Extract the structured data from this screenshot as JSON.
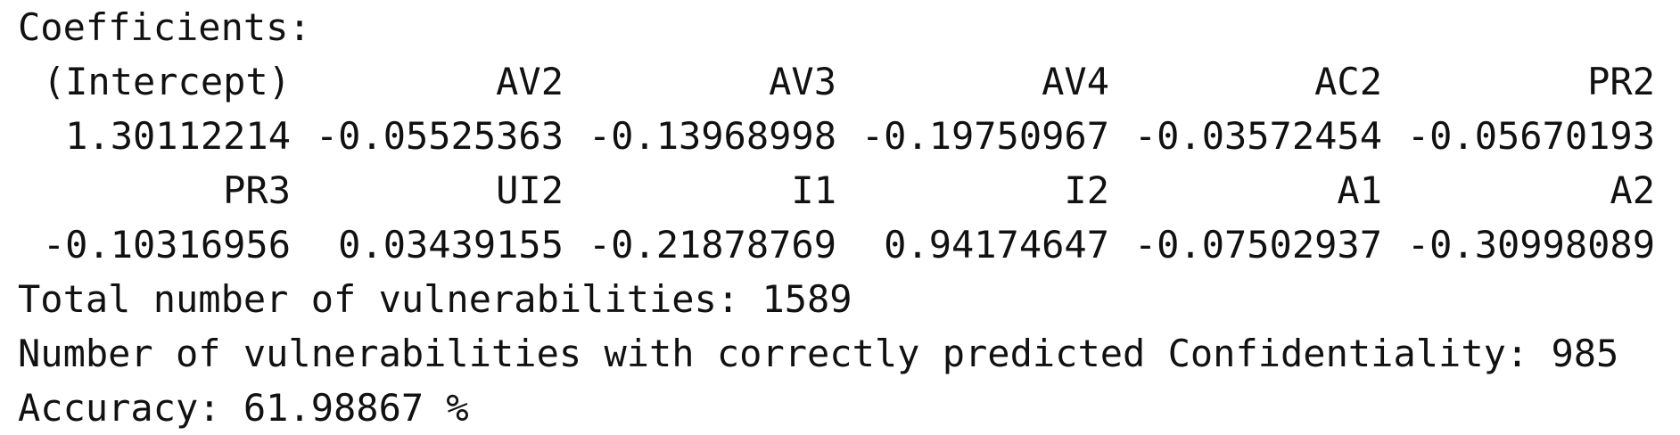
{
  "console": {
    "header": "Coefficients:",
    "coef_rows": [
      {
        "names": [
          "(Intercept)",
          "AV2",
          "AV3",
          "AV4",
          "AC2",
          "PR2"
        ],
        "values": [
          "1.30112214",
          "-0.05525363",
          "-0.13968998",
          "-0.19750967",
          "-0.03572454",
          "-0.05670193"
        ]
      },
      {
        "names": [
          "PR3",
          "UI2",
          "I1",
          "I2",
          "A1",
          "A2"
        ],
        "values": [
          "-0.10316956",
          "0.03439155",
          "-0.21878769",
          "0.94174647",
          "-0.07502937",
          "-0.30998089"
        ]
      }
    ],
    "total_line": "Total number of vulnerabilities: 1589",
    "correct_line": "Number of vulnerabilities with correctly predicted Confidentiality: 985",
    "accuracy_line": "Accuracy: 61.98867 %"
  }
}
